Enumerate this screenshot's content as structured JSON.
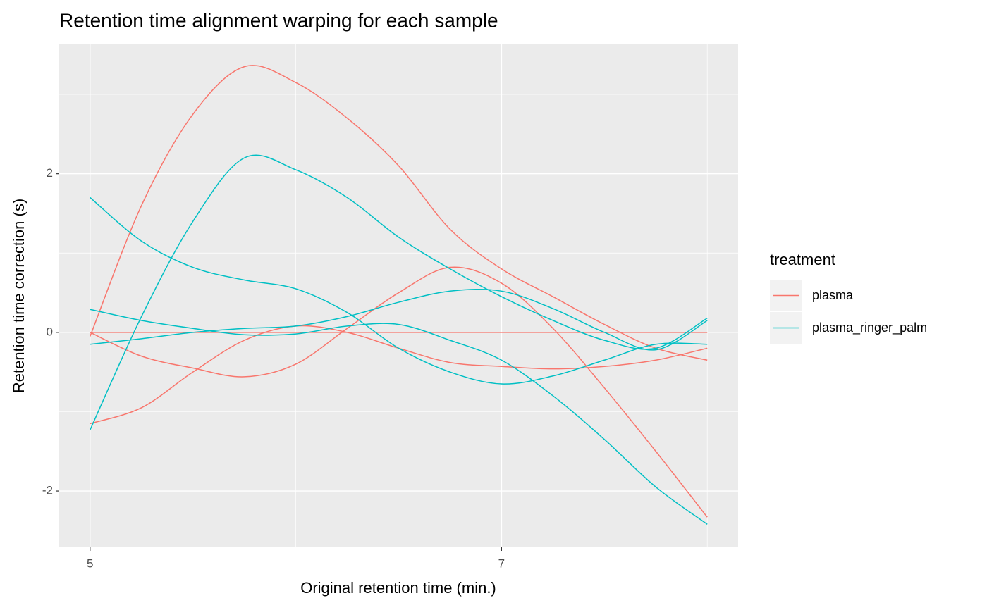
{
  "chart_data": {
    "type": "line",
    "title": "Retention time alignment warping for each sample",
    "x_label": "Original retention time (min.)",
    "y_label": "Retention time correction (s)",
    "legend_title": "treatment",
    "legend": "right",
    "grid": true,
    "x": [
      5,
      5.25,
      5.5,
      5.75,
      6,
      6.25,
      6.5,
      6.75,
      7,
      7.25,
      7.5,
      7.75,
      8
    ],
    "series": [
      {
        "name": "plasma",
        "color": "#f8766d",
        "values": [
          -0.05,
          1.6,
          2.75,
          3.35,
          3.15,
          2.7,
          2.1,
          1.3,
          0.8,
          0.45,
          0.1,
          -0.2,
          -0.35
        ]
      },
      {
        "name": "plasma",
        "color": "#f8766d",
        "values": [
          0,
          0,
          0,
          0,
          0,
          0,
          0,
          0,
          0,
          0,
          0,
          0,
          0
        ]
      },
      {
        "name": "plasma",
        "color": "#f8766d",
        "values": [
          0,
          -0.3,
          -0.45,
          -0.56,
          -0.4,
          0.05,
          0.5,
          0.82,
          0.62,
          0.05,
          -0.7,
          -1.5,
          -2.33
        ]
      },
      {
        "name": "plasma",
        "color": "#f8766d",
        "values": [
          -1.15,
          -0.95,
          -0.5,
          -0.1,
          0.08,
          0,
          -0.2,
          -0.38,
          -0.43,
          -0.46,
          -0.43,
          -0.35,
          -0.2
        ]
      },
      {
        "name": "plasma_ringer_palm",
        "color": "#00bfc4",
        "values": [
          -1.23,
          0.2,
          1.4,
          2.2,
          2.05,
          1.7,
          1.2,
          0.8,
          0.45,
          0.15,
          -0.1,
          -0.2,
          0.18
        ]
      },
      {
        "name": "plasma_ringer_palm",
        "color": "#00bfc4",
        "values": [
          1.7,
          1.15,
          0.82,
          0.66,
          0.55,
          0.25,
          -0.2,
          -0.5,
          -0.65,
          -0.55,
          -0.35,
          -0.15,
          -0.15
        ]
      },
      {
        "name": "plasma_ringer_palm",
        "color": "#00bfc4",
        "values": [
          0.29,
          0.15,
          0.05,
          -0.03,
          -0.02,
          0.08,
          0.1,
          -0.1,
          -0.35,
          -0.8,
          -1.35,
          -1.95,
          -2.42
        ]
      },
      {
        "name": "plasma_ringer_palm",
        "color": "#00bfc4",
        "values": [
          -0.15,
          -0.08,
          0,
          0.05,
          0.08,
          0.2,
          0.38,
          0.52,
          0.52,
          0.3,
          0,
          -0.22,
          0.15
        ]
      }
    ],
    "xlim": [
      4.85,
      8.15
    ],
    "ylim": [
      -2.71,
      3.64
    ],
    "xticks": [
      5,
      7
    ],
    "yticks": [
      -2,
      0,
      2
    ],
    "x_minor_grid": [
      6,
      8
    ],
    "y_minor_grid": [
      -1,
      1,
      3
    ]
  }
}
